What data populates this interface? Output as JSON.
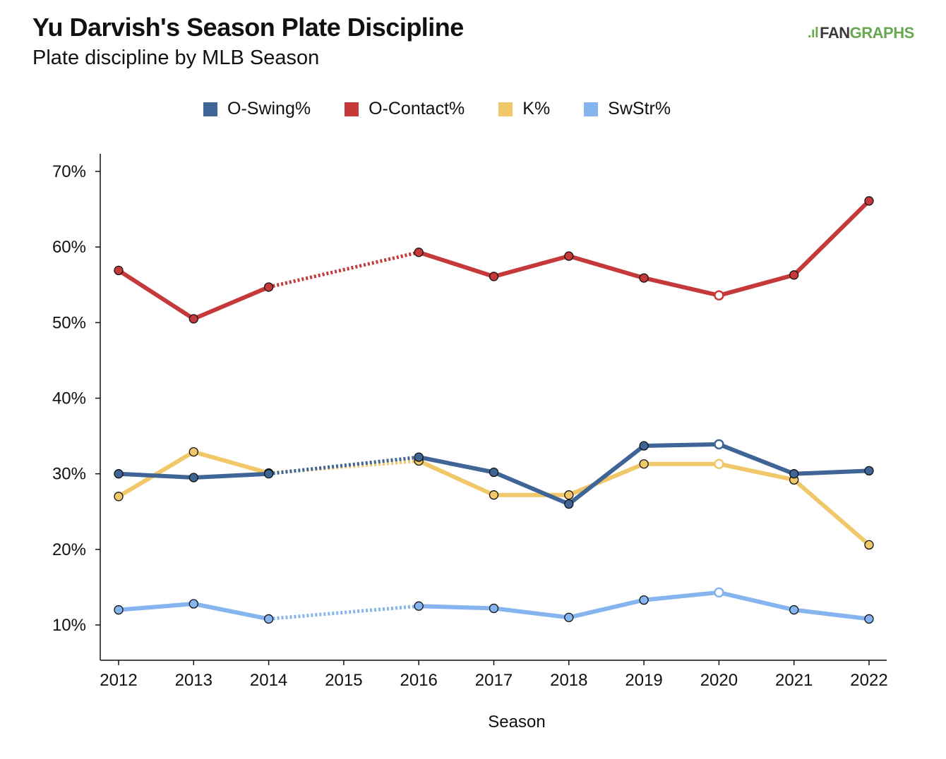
{
  "header": {
    "title": "Yu Darvish's Season Plate Discipline",
    "subtitle": "Plate discipline by MLB Season",
    "logo_fan": "FAN",
    "logo_graphs": "GRAPHS"
  },
  "chart_data": {
    "type": "line",
    "title": "Yu Darvish's Season Plate Discipline",
    "subtitle": "Plate discipline by MLB Season",
    "xlabel": "Season",
    "ylabel": "",
    "x": [
      2012,
      2013,
      2014,
      2015,
      2016,
      2017,
      2018,
      2019,
      2020,
      2021,
      2022
    ],
    "x_ticks": [
      "2012",
      "2013",
      "2014",
      "2015",
      "2016",
      "2017",
      "2018",
      "2019",
      "2020",
      "2021",
      "2022"
    ],
    "ylim": [
      5,
      72
    ],
    "y_ticks": [
      10,
      20,
      30,
      40,
      50,
      60,
      70
    ],
    "y_tick_labels": [
      "10%",
      "20%",
      "30%",
      "40%",
      "50%",
      "60%",
      "70%"
    ],
    "grid": false,
    "legend_position": "top",
    "gap_style": "dotted line connects 2014 to 2016 (no 2015 season)",
    "highlight_open_point": "2020",
    "series": [
      {
        "name": "O-Swing%",
        "color": "#3f6597",
        "values": [
          30.0,
          29.5,
          30.0,
          null,
          32.2,
          30.2,
          26.0,
          33.7,
          33.9,
          30.0,
          30.4
        ]
      },
      {
        "name": "O-Contact%",
        "color": "#c5393a",
        "values": [
          56.9,
          50.5,
          54.7,
          null,
          59.3,
          56.1,
          58.8,
          55.9,
          53.6,
          56.3,
          66.1
        ]
      },
      {
        "name": "K%",
        "color": "#f0c86a",
        "values": [
          27.0,
          32.9,
          30.1,
          null,
          31.7,
          27.2,
          27.2,
          31.3,
          31.3,
          29.2,
          20.6
        ]
      },
      {
        "name": "SwStr%",
        "color": "#85b4ee",
        "values": [
          12.0,
          12.8,
          10.8,
          null,
          12.5,
          12.2,
          11.0,
          13.3,
          14.3,
          12.0,
          10.8
        ]
      }
    ]
  }
}
